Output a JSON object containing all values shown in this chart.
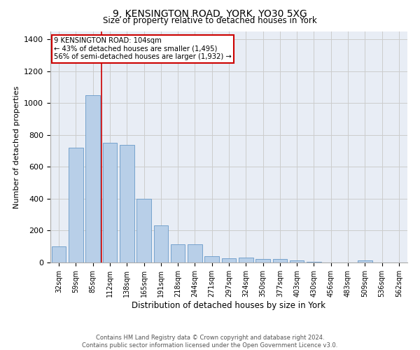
{
  "title1": "9, KENSINGTON ROAD, YORK, YO30 5XG",
  "title2": "Size of property relative to detached houses in York",
  "xlabel": "Distribution of detached houses by size in York",
  "ylabel": "Number of detached properties",
  "categories": [
    "32sqm",
    "59sqm",
    "85sqm",
    "112sqm",
    "138sqm",
    "165sqm",
    "191sqm",
    "218sqm",
    "244sqm",
    "271sqm",
    "297sqm",
    "324sqm",
    "350sqm",
    "377sqm",
    "403sqm",
    "430sqm",
    "456sqm",
    "483sqm",
    "509sqm",
    "536sqm",
    "562sqm"
  ],
  "values": [
    100,
    720,
    1050,
    750,
    740,
    400,
    235,
    115,
    115,
    40,
    25,
    30,
    20,
    20,
    15,
    5,
    0,
    0,
    15,
    0,
    0
  ],
  "bar_color": "#b8cfe8",
  "bar_edge_color": "#6899c8",
  "grid_color": "#cccccc",
  "background_color": "#e8edf5",
  "annotation_box_color": "#ffffff",
  "annotation_box_edge": "#cc0000",
  "vline_color": "#cc0000",
  "annotation_line1": "9 KENSINGTON ROAD: 104sqm",
  "annotation_line2": "← 43% of detached houses are smaller (1,495)",
  "annotation_line3": "56% of semi-detached houses are larger (1,932) →",
  "footer1": "Contains HM Land Registry data © Crown copyright and database right 2024.",
  "footer2": "Contains public sector information licensed under the Open Government Licence v3.0.",
  "ylim": [
    0,
    1450
  ],
  "yticks": [
    0,
    200,
    400,
    600,
    800,
    1000,
    1200,
    1400
  ],
  "vline_x": 2.5
}
